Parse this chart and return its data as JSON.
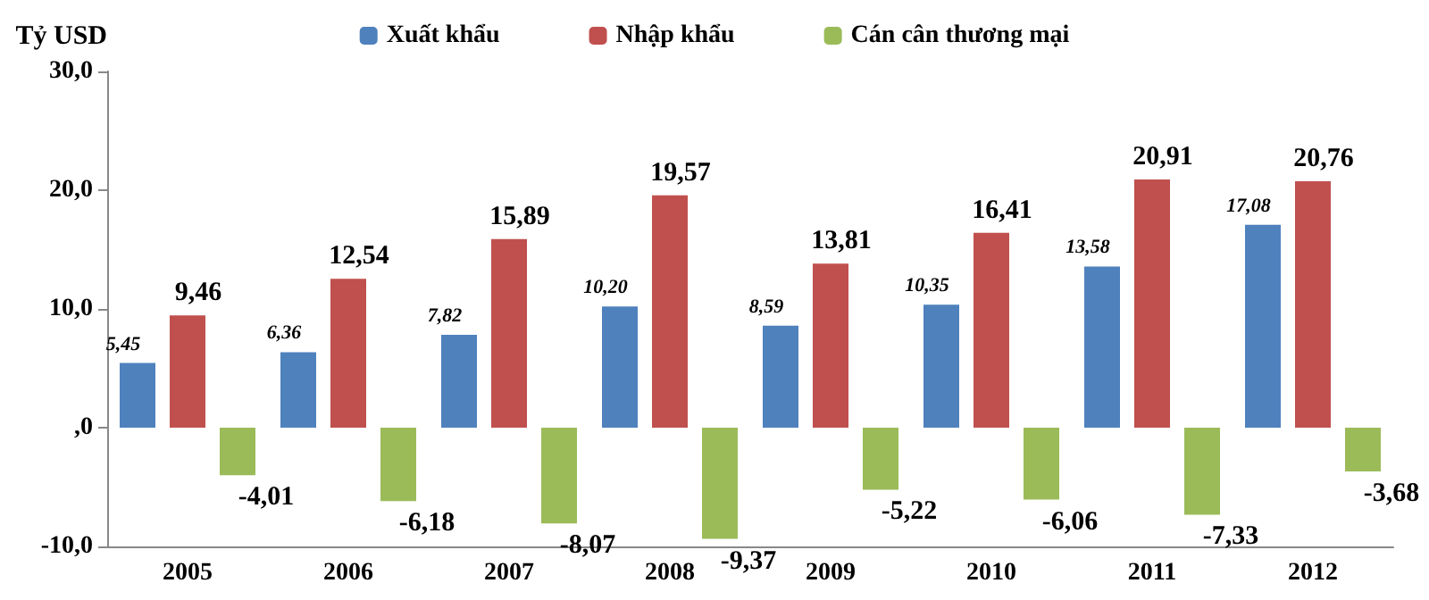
{
  "chart_data": {
    "type": "bar",
    "ylabel": "Tỷ USD",
    "categories": [
      "2005",
      "2006",
      "2007",
      "2008",
      "2009",
      "2010",
      "2011",
      "2012"
    ],
    "series": [
      {
        "name": "Xuất khẩu",
        "color": "#4f81bd",
        "values": [
          5.45,
          6.36,
          7.82,
          10.2,
          8.59,
          10.35,
          13.58,
          17.08
        ],
        "value_labels": [
          "5,45",
          "6,36",
          "7,82",
          "10,20",
          "8,59",
          "10,35",
          "13,58",
          "17,08"
        ]
      },
      {
        "name": "Nhập khẩu",
        "color": "#c0504d",
        "values": [
          9.46,
          12.54,
          15.89,
          19.57,
          13.81,
          16.41,
          20.91,
          20.76
        ],
        "value_labels": [
          "9,46",
          "12,54",
          "15,89",
          "19,57",
          "13,81",
          "16,41",
          "20,91",
          "20,76"
        ]
      },
      {
        "name": "Cán cân thương mại",
        "color": "#9bbb59",
        "values": [
          -4.01,
          -6.18,
          -8.07,
          -9.37,
          -5.22,
          -6.06,
          -7.33,
          -3.68
        ],
        "value_labels": [
          "-4,01",
          "-6,18",
          "-8,07",
          "-9,37",
          "-5,22",
          "-6,06",
          "-7,33",
          "-3,68"
        ]
      }
    ],
    "ylim": [
      -10,
      30
    ],
    "yticks": [
      {
        "value": -10,
        "label": "-10,0"
      },
      {
        "value": 0,
        "label": ",0"
      },
      {
        "value": 10,
        "label": "10,0"
      },
      {
        "value": 20,
        "label": "20,0"
      },
      {
        "value": 30,
        "label": "30,0"
      }
    ],
    "grid": false,
    "legend": "top"
  }
}
